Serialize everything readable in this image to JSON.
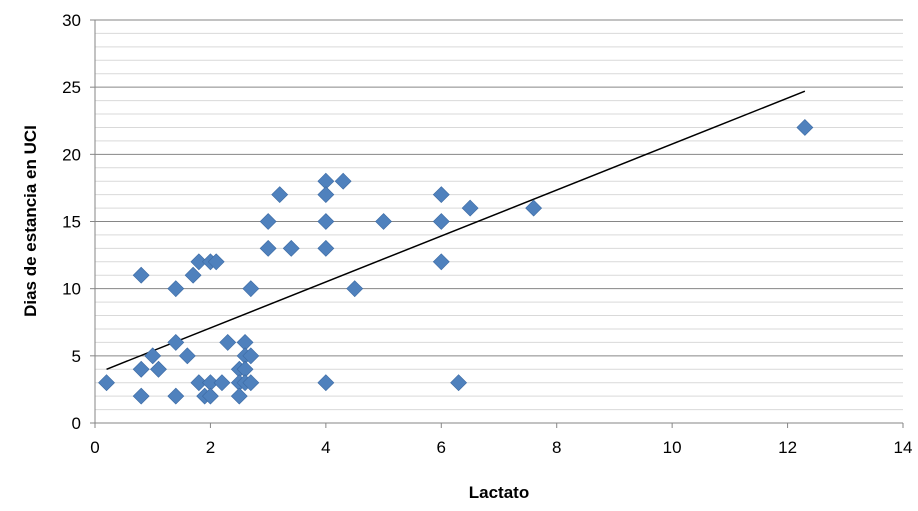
{
  "chart_data": {
    "type": "scatter",
    "title": "",
    "xlabel": "Lactato",
    "ylabel": "Dias de estancia en UCI",
    "xlim": [
      0,
      14
    ],
    "ylim": [
      0,
      30
    ],
    "x_ticks": [
      0,
      2,
      4,
      6,
      8,
      10,
      12,
      14
    ],
    "y_ticks": [
      0,
      5,
      10,
      15,
      20,
      25,
      30
    ],
    "grid": "horizontal, major and minor",
    "legend": "none",
    "marker": "diamond",
    "series": [
      {
        "color": "#4F81BD",
        "points": [
          [
            0.2,
            3
          ],
          [
            0.8,
            11
          ],
          [
            0.8,
            4
          ],
          [
            0.8,
            2
          ],
          [
            1.0,
            5
          ],
          [
            1.1,
            4
          ],
          [
            1.4,
            10
          ],
          [
            1.4,
            6
          ],
          [
            1.4,
            2
          ],
          [
            1.6,
            5
          ],
          [
            1.7,
            11
          ],
          [
            1.8,
            12
          ],
          [
            1.8,
            3
          ],
          [
            1.9,
            2
          ],
          [
            2.0,
            12
          ],
          [
            2.0,
            3
          ],
          [
            2.0,
            2
          ],
          [
            2.1,
            12
          ],
          [
            2.2,
            3
          ],
          [
            2.3,
            6
          ],
          [
            2.5,
            4
          ],
          [
            2.5,
            3
          ],
          [
            2.5,
            2
          ],
          [
            2.6,
            6
          ],
          [
            2.6,
            5
          ],
          [
            2.6,
            4
          ],
          [
            2.6,
            3
          ],
          [
            2.7,
            10
          ],
          [
            2.7,
            5
          ],
          [
            2.7,
            3
          ],
          [
            3.0,
            15
          ],
          [
            3.0,
            13
          ],
          [
            3.2,
            17
          ],
          [
            3.4,
            13
          ],
          [
            4.0,
            18
          ],
          [
            4.0,
            17
          ],
          [
            4.0,
            15
          ],
          [
            4.0,
            13
          ],
          [
            4.0,
            3
          ],
          [
            4.3,
            18
          ],
          [
            4.5,
            10
          ],
          [
            5.0,
            15
          ],
          [
            6.0,
            17
          ],
          [
            6.0,
            15
          ],
          [
            6.0,
            12
          ],
          [
            6.3,
            3
          ],
          [
            6.5,
            16
          ],
          [
            7.6,
            16
          ],
          [
            12.3,
            22
          ]
        ]
      }
    ],
    "trendline": {
      "type": "linear",
      "color": "#000000",
      "points": [
        [
          0.2,
          4.0
        ],
        [
          12.3,
          24.7
        ]
      ]
    }
  }
}
